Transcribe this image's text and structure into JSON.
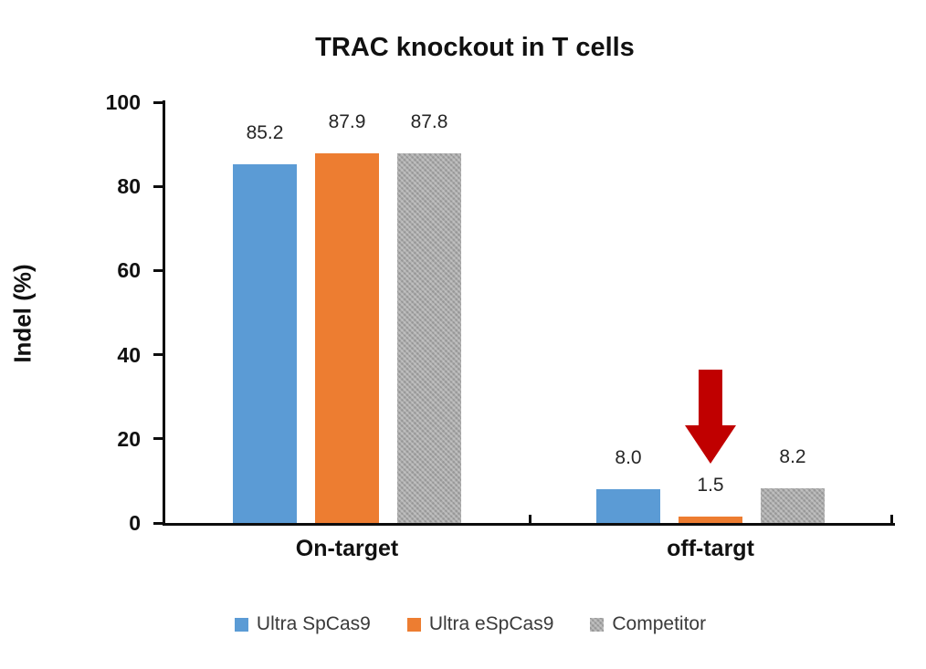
{
  "title": "TRAC knockout in T cells",
  "chart_data": {
    "type": "bar",
    "title": "TRAC knockout in T cells",
    "categories": [
      "On-target",
      "off-targt"
    ],
    "series": [
      {
        "name": "Ultra SpCas9",
        "color": "#5b9bd5",
        "pattern": false,
        "values": [
          85.2,
          8.0
        ]
      },
      {
        "name": "Ultra eSpCas9",
        "color": "#ed7d31",
        "pattern": false,
        "values": [
          87.9,
          1.5
        ]
      },
      {
        "name": "Competitor",
        "color": "#a8a8a8",
        "pattern": true,
        "values": [
          87.8,
          8.2
        ]
      }
    ],
    "data_labels": [
      [
        "85.2",
        "87.9",
        "87.8"
      ],
      [
        "8.0",
        "1.5",
        "8.2"
      ]
    ],
    "ylabel": "Indel (%)",
    "xlabel": "",
    "ylim": [
      0,
      100
    ],
    "yticks": [
      0,
      20,
      40,
      60,
      80,
      100
    ],
    "grid": false,
    "legend_position": "bottom",
    "axis_color": "#0d0d0d",
    "annotation": {
      "type": "arrow-down",
      "color": "#c00000",
      "target_series": "Ultra eSpCas9",
      "target_category": "off-targt"
    }
  }
}
